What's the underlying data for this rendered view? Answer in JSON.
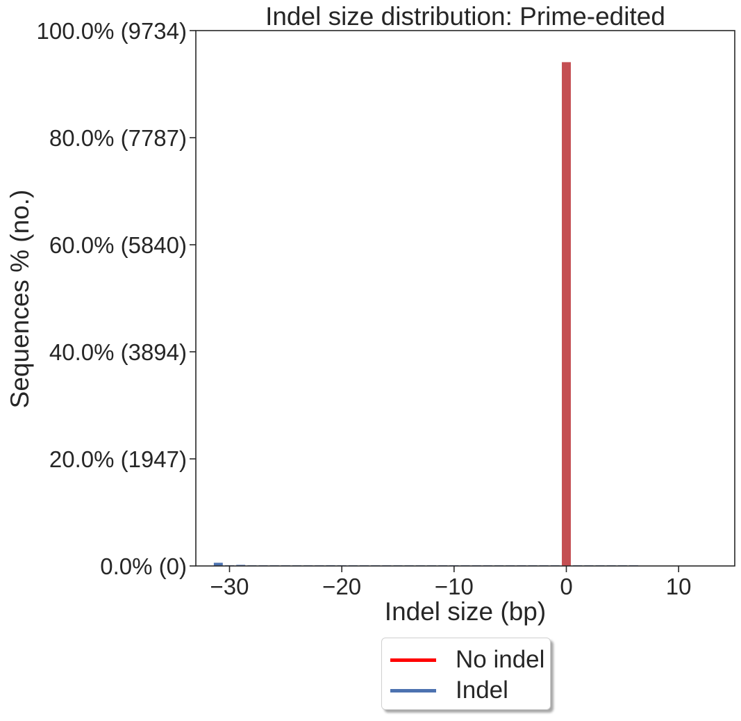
{
  "chart_data": {
    "type": "bar",
    "title": "Indel size distribution: Prime-edited",
    "xlabel": "Indel size (bp)",
    "ylabel": "Sequences % (no.)",
    "xlim": [
      -33,
      15
    ],
    "ylim": [
      0,
      9734
    ],
    "x_ticks": [
      -30,
      -20,
      -10,
      0,
      10
    ],
    "x_tick_labels": [
      "−30",
      "−20",
      "−10",
      "0",
      "10"
    ],
    "y_ticks": [
      0,
      1947,
      3894,
      5840,
      7787,
      9734
    ],
    "y_tick_labels": [
      "0.0% (0)",
      "20.0% (1947)",
      "40.0% (3894)",
      "60.0% (5840)",
      "80.0% (7787)",
      "100.0% (9734)"
    ],
    "bar_width": 0.8,
    "grid": false,
    "legend_position": "bottom-center",
    "series": [
      {
        "name": "No indel",
        "color": "#c44e52",
        "legend_color": "#ff0000",
        "x": [
          0
        ],
        "values": [
          9160
        ]
      },
      {
        "name": "Indel",
        "color": "#4c72b0",
        "legend_color": "#4c72b0",
        "x": [
          -31,
          -30,
          -29,
          -28,
          -27,
          -26,
          -25,
          -24,
          -23,
          -22,
          -21,
          -20,
          -19,
          -18,
          -17,
          -16,
          -15,
          -14,
          -13,
          -12,
          -11,
          -10,
          -9,
          -8,
          -7,
          -6,
          -5,
          -4,
          -3,
          -2,
          -1,
          1,
          2,
          3,
          4,
          5,
          6
        ],
        "values": [
          58,
          6,
          20,
          6,
          5,
          4,
          4,
          5,
          4,
          6,
          14,
          5,
          3,
          3,
          3,
          3,
          4,
          3,
          3,
          3,
          3,
          4,
          3,
          3,
          3,
          4,
          5,
          4,
          5,
          6,
          8,
          8,
          6,
          5,
          5,
          4,
          3
        ]
      }
    ]
  }
}
